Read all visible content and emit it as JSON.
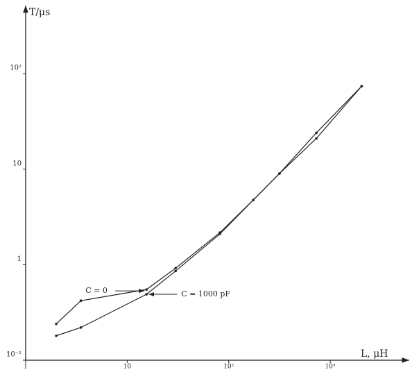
{
  "chart_data": {
    "type": "line",
    "log_scale": {
      "x": true,
      "y": true
    },
    "x_label": "L, μH",
    "y_label": "T/μs",
    "xlim": [
      1,
      6000
    ],
    "ylim": [
      0.1,
      500
    ],
    "xticks": [
      1,
      10,
      {
        "value": 100,
        "label": "10²"
      },
      {
        "value": 1000,
        "label": "10³"
      }
    ],
    "yticks": [
      {
        "value": 0.1,
        "label": "10⁻¹"
      },
      1,
      10,
      {
        "value": 100,
        "label": "10²"
      }
    ],
    "color": "#222222",
    "series": [
      {
        "name": "C = 0",
        "x": [
          2,
          3.5,
          15.5,
          30,
          82,
          175,
          316,
          730,
          2040
        ],
        "values": [
          0.24,
          0.42,
          0.55,
          0.92,
          2.17,
          4.77,
          9.0,
          24,
          74
        ]
      },
      {
        "name": "C = 1000 pF",
        "x": [
          2,
          3.5,
          15.5,
          30,
          82,
          175,
          316,
          730,
          2040
        ],
        "values": [
          0.18,
          0.22,
          0.49,
          0.86,
          2.1,
          4.77,
          9.0,
          21,
          74
        ]
      }
    ]
  }
}
